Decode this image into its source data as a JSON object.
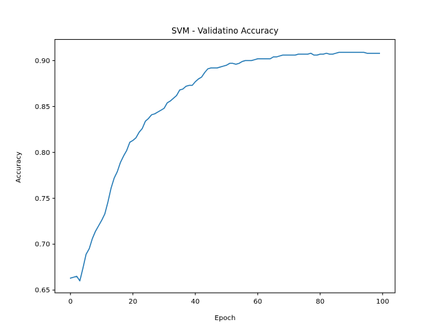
{
  "chart_data": {
    "type": "line",
    "title": "SVM - Validatino Accuracy",
    "xlabel": "Epoch",
    "ylabel": "Accuracy",
    "xlim": [
      -5,
      104
    ],
    "ylim": [
      0.647,
      0.923
    ],
    "xticks": [
      0,
      20,
      40,
      60,
      80,
      100
    ],
    "yticks": [
      0.65,
      0.7,
      0.75,
      0.8,
      0.85,
      0.9
    ],
    "ytick_labels": [
      "0.65",
      "0.70",
      "0.75",
      "0.80",
      "0.85",
      "0.90"
    ],
    "grid": false,
    "series": [
      {
        "color": "#1f77b4",
        "x": [
          0,
          1,
          2,
          3,
          4,
          5,
          6,
          7,
          8,
          9,
          10,
          11,
          12,
          13,
          14,
          15,
          16,
          17,
          18,
          19,
          20,
          21,
          22,
          23,
          24,
          25,
          26,
          27,
          28,
          29,
          30,
          31,
          32,
          33,
          34,
          35,
          36,
          37,
          38,
          39,
          40,
          41,
          42,
          43,
          44,
          45,
          46,
          47,
          48,
          49,
          50,
          51,
          52,
          53,
          54,
          55,
          56,
          57,
          58,
          59,
          60,
          61,
          62,
          63,
          64,
          65,
          66,
          67,
          68,
          69,
          70,
          71,
          72,
          73,
          74,
          75,
          76,
          77,
          78,
          79,
          80,
          81,
          82,
          83,
          84,
          85,
          86,
          87,
          88,
          89,
          90,
          91,
          92,
          93,
          94,
          95,
          96,
          97,
          98,
          99
        ],
        "values": [
          0.663,
          0.664,
          0.665,
          0.66,
          0.674,
          0.689,
          0.695,
          0.706,
          0.714,
          0.72,
          0.726,
          0.733,
          0.746,
          0.761,
          0.772,
          0.779,
          0.789,
          0.796,
          0.802,
          0.811,
          0.813,
          0.816,
          0.822,
          0.826,
          0.834,
          0.837,
          0.841,
          0.842,
          0.844,
          0.846,
          0.848,
          0.854,
          0.856,
          0.859,
          0.862,
          0.868,
          0.869,
          0.872,
          0.873,
          0.873,
          0.877,
          0.88,
          0.882,
          0.887,
          0.891,
          0.892,
          0.892,
          0.892,
          0.893,
          0.894,
          0.895,
          0.897,
          0.897,
          0.896,
          0.897,
          0.899,
          0.9,
          0.9,
          0.9,
          0.901,
          0.902,
          0.902,
          0.902,
          0.902,
          0.902,
          0.904,
          0.904,
          0.905,
          0.906,
          0.906,
          0.906,
          0.906,
          0.906,
          0.907,
          0.907,
          0.907,
          0.907,
          0.908,
          0.906,
          0.906,
          0.907,
          0.907,
          0.908,
          0.907,
          0.907,
          0.908,
          0.909,
          0.909,
          0.909,
          0.909,
          0.909,
          0.909,
          0.909,
          0.909,
          0.909,
          0.908,
          0.908,
          0.908,
          0.908,
          0.908
        ]
      }
    ]
  }
}
